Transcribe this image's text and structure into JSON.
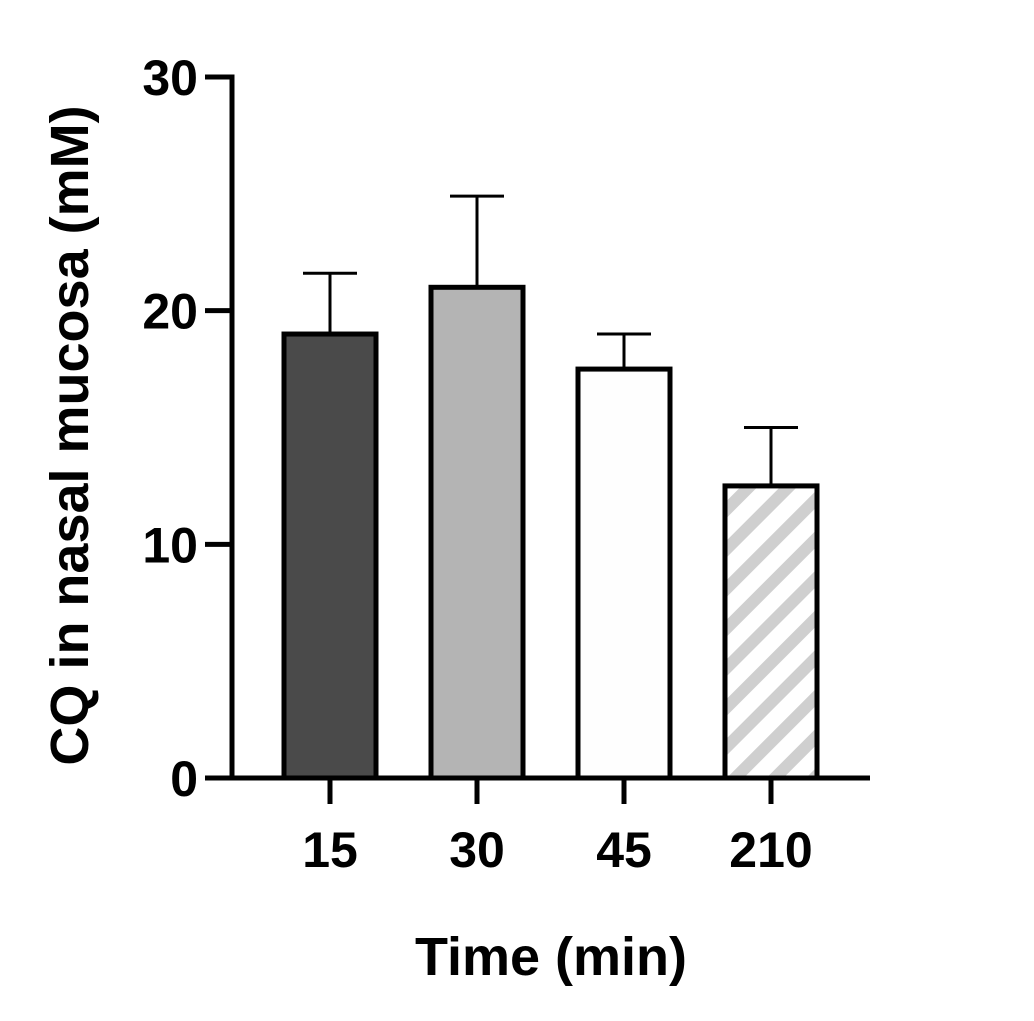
{
  "chart_data": {
    "type": "bar",
    "title": "",
    "xlabel": "Time (min)",
    "ylabel": "CQ in nasal mucosa (mM)",
    "categories": [
      "15",
      "30",
      "45",
      "210"
    ],
    "values": [
      19.0,
      21.0,
      17.5,
      12.5
    ],
    "error_upper": [
      2.6,
      3.9,
      1.5,
      2.5
    ],
    "ylim": [
      0,
      30
    ],
    "yticks": [
      0,
      10,
      20,
      30
    ],
    "ytick_labels": [
      "0",
      "10",
      "20",
      "30"
    ],
    "grid": false,
    "legend": "none",
    "bar_fills": [
      "#4a4a4a",
      "#b4b4b4",
      "#fefefe",
      "hatch"
    ],
    "hatch_color": "#cfcfcf",
    "edge_color": "#000000"
  }
}
